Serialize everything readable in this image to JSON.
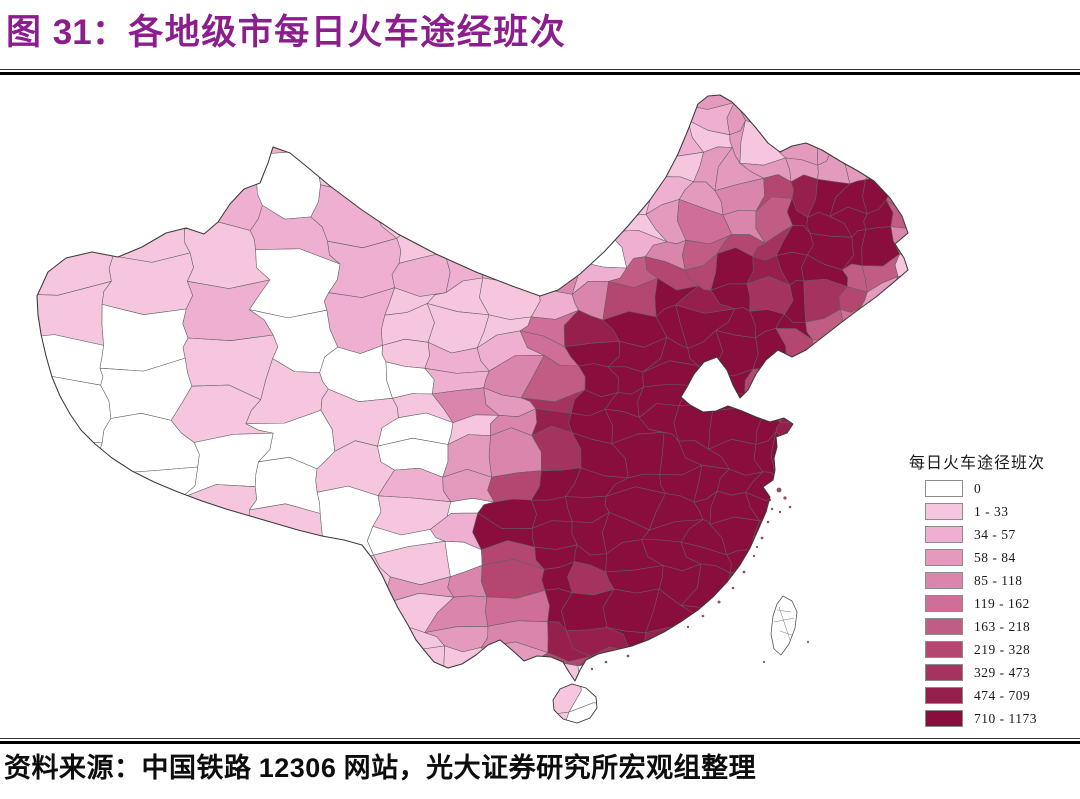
{
  "figure": {
    "title_prefix": "图 ",
    "title_number": "31",
    "title_rest": "：各地级市每日火车途经班次",
    "source_prefix": "资料来源：中国铁路 ",
    "source_number": "12306",
    "source_suffix": " 网站，光大证券研究所宏观组整理"
  },
  "legend": {
    "title": "每日火车途径班次",
    "items": [
      {
        "label": "0",
        "color": "#FFFFFF"
      },
      {
        "label": "1 - 33",
        "color": "#F5C6DD"
      },
      {
        "label": "34 - 57",
        "color": "#EFAFD0"
      },
      {
        "label": "58 - 84",
        "color": "#E49ABC"
      },
      {
        "label": "85 - 118",
        "color": "#DA85AB"
      },
      {
        "label": "119 - 162",
        "color": "#CF6F97"
      },
      {
        "label": "163 - 218",
        "color": "#C15C84"
      },
      {
        "label": "219 - 328",
        "color": "#B3476F"
      },
      {
        "label": "329 - 473",
        "color": "#A4345D"
      },
      {
        "label": "474 - 709",
        "color": "#971F4C"
      },
      {
        "label": "710 - 1173",
        "color": "#8A0E3D"
      }
    ]
  },
  "chart_data": {
    "type": "choropleth",
    "title": "各地级市每日火车途经班次",
    "region": "中国 地级市",
    "legend_title": "每日火车途径班次",
    "bins": [
      "0",
      "1 - 33",
      "34 - 57",
      "58 - 84",
      "85 - 118",
      "119 - 162",
      "163 - 218",
      "219 - 328",
      "329 - 473",
      "474 - 709",
      "710 - 1173"
    ],
    "bin_colors": [
      "#FFFFFF",
      "#F5C6DD",
      "#EFAFD0",
      "#E49ABC",
      "#DA85AB",
      "#CF6F97",
      "#C15C84",
      "#B3476F",
      "#A4345D",
      "#971F4C",
      "#8A0E3D"
    ],
    "pattern": "west (Xinjiang, Tibet, Qinghai) mostly 0 or 1-33; east and central prefectures dense 85-473; darkest 710-1173 around Beijing, Shanghai, Zhengzhou, Wuhan, Changsha, Guangzhou"
  },
  "colors": {
    "title": "#8B1E8C",
    "boundary": "#3a3a3a",
    "cell_border": "#606060"
  }
}
